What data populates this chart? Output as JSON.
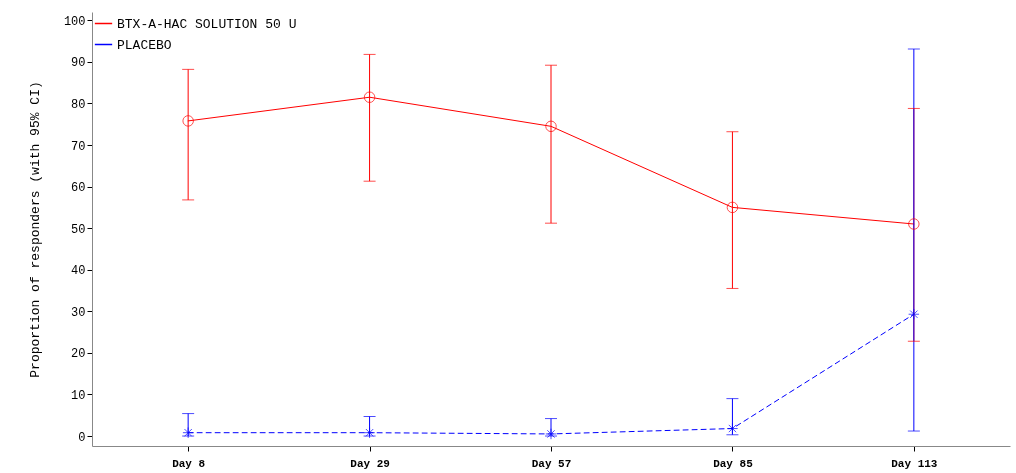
{
  "chart_data": {
    "type": "line",
    "ylabel": "Proportion of responders (with 95% CI)",
    "categories": [
      "Day 8",
      "Day 29",
      "Day 57",
      "Day 85",
      "Day 113"
    ],
    "ylim": [
      -2.4,
      102
    ],
    "yticks": [
      0,
      10,
      20,
      30,
      40,
      50,
      60,
      70,
      80,
      90,
      100
    ],
    "grid": false,
    "legend": "top left",
    "series": [
      {
        "name": "BTX-A-HAC SOLUTION 50 U",
        "color": "#ff0000",
        "marker": "circle",
        "line_style": "solid",
        "values": [
          75.8,
          81.5,
          74.5,
          55,
          51
        ],
        "errors": [
          [
            56.8,
            88.2
          ],
          [
            61.3,
            91.8
          ],
          [
            51.2,
            89.2
          ],
          [
            35.5,
            73.2
          ],
          [
            22.8,
            78.8
          ]
        ]
      },
      {
        "name": "PLACEBO",
        "color": "#0000ff",
        "marker": "cross",
        "line_style": "dashed",
        "values": [
          0.8,
          0.8,
          0.5,
          1.8,
          29.3
        ],
        "errors": [
          [
            0,
            5.4
          ],
          [
            0,
            4.7
          ],
          [
            0,
            4.2
          ],
          [
            0.3,
            9
          ],
          [
            1.2,
            93.1
          ]
        ]
      }
    ]
  }
}
